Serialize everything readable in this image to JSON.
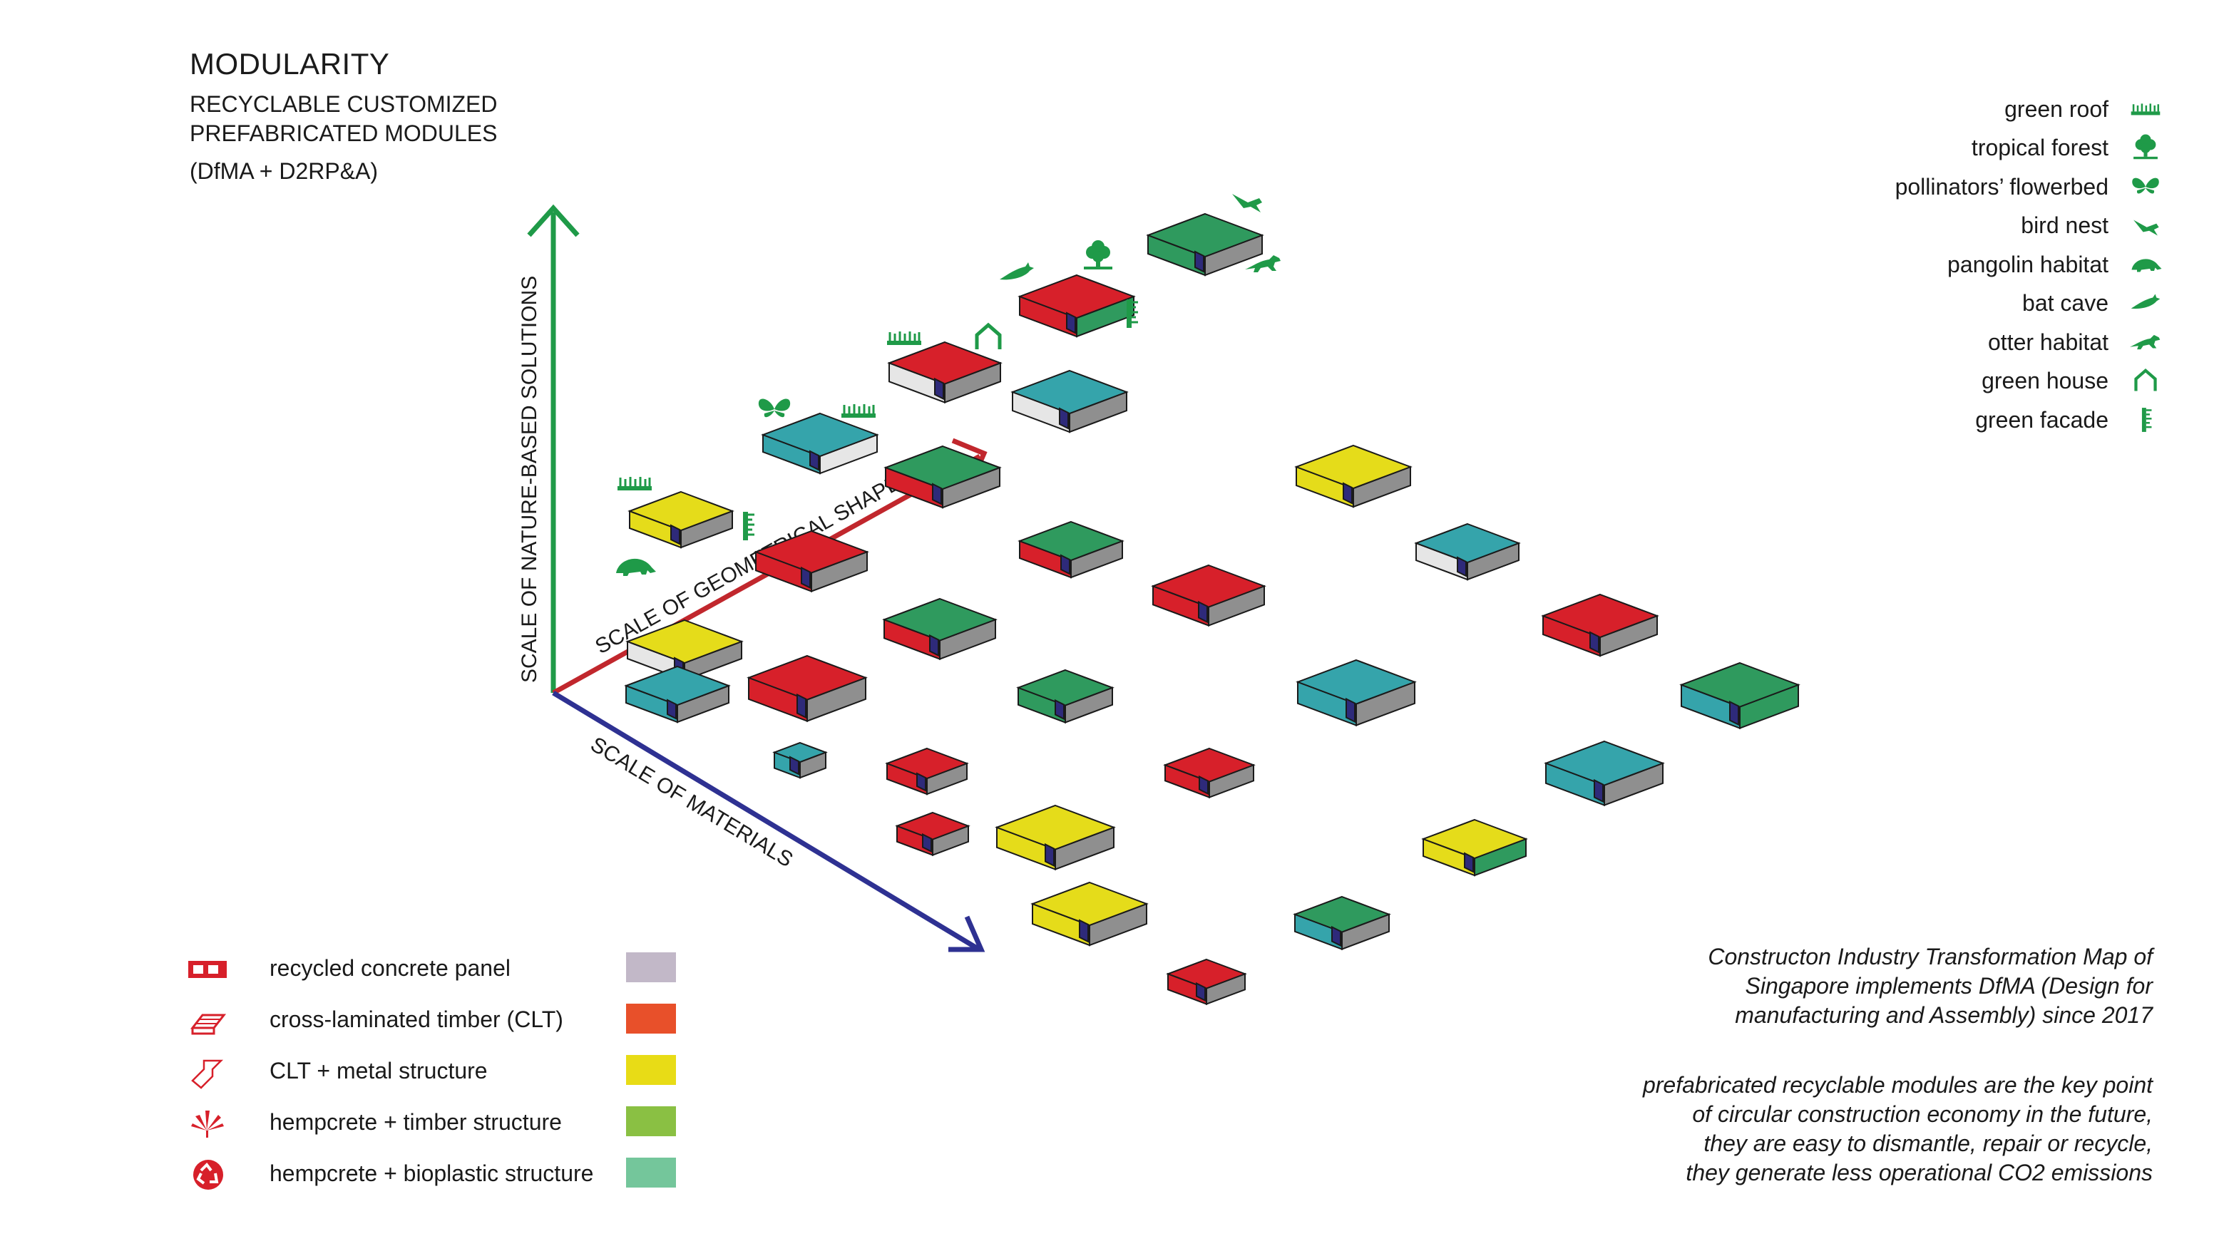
{
  "header": {
    "title": "MODULARITY",
    "subtitle_line1": "RECYCLABLE CUSTOMIZED",
    "subtitle_line2": "PREFABRICATED MODULES",
    "tagline": "(DfMA + D2RP&A)"
  },
  "axes": {
    "vertical": "SCALE OF NATURE-BASED SOLUTIONS",
    "diagonal_up": "SCALE OF GEOMETRICAL SHAPE",
    "diagonal_down": "SCALE OF MATERIALS",
    "colors": {
      "vertical": "#1f9a48",
      "diagonal_up": "#c1272d",
      "diagonal_down": "#2e3192"
    }
  },
  "eco_legend": [
    {
      "label": "green roof",
      "icon": "green-roof-icon"
    },
    {
      "label": "tropical forest",
      "icon": "tree-icon"
    },
    {
      "label": "pollinators’ flowerbed",
      "icon": "butterfly-icon"
    },
    {
      "label": "bird nest",
      "icon": "bird-icon"
    },
    {
      "label": "pangolin habitat",
      "icon": "pangolin-icon"
    },
    {
      "label": "bat cave",
      "icon": "bat-icon"
    },
    {
      "label": "otter habitat",
      "icon": "otter-icon"
    },
    {
      "label": "green house",
      "icon": "greenhouse-icon"
    },
    {
      "label": "green facade",
      "icon": "green-facade-icon"
    }
  ],
  "material_legend": [
    {
      "label": "recycled concrete panel",
      "swatch": "#c2b8c8",
      "icon": "concrete-panel-icon"
    },
    {
      "label": "cross-laminated timber (CLT)",
      "swatch": "#e8502a",
      "icon": "timber-icon"
    },
    {
      "label": "CLT + metal structure",
      "swatch": "#e8dc16",
      "icon": "metal-beam-icon"
    },
    {
      "label": "hempcrete + timber structure",
      "swatch": "#8ac043",
      "icon": "hemp-leaf-icon"
    },
    {
      "label": "hempcrete + bioplastic structure",
      "swatch": "#74c69b",
      "icon": "recycle-icon"
    }
  ],
  "notes": {
    "note1": [
      "Constructon Industry Transformation Map of",
      "Singapore implements DfMA (Design for",
      "manufacturing and Assembly) since 2017"
    ],
    "note2": [
      "prefabricated recyclable modules are the key point",
      "of circular construction economy in the future,",
      "they are easy to dismantle, repair or recycle,",
      "they generate less operational CO2 emissions"
    ]
  },
  "palette": {
    "red": "#d7202a",
    "teal": "#35a4ab",
    "green": "#2f9a5e",
    "yellow": "#e5dc1a",
    "grey": "#8f8f8f",
    "white": "#e6e6e6",
    "window": "#2e2a7a",
    "eco": "#1f9a48"
  }
}
